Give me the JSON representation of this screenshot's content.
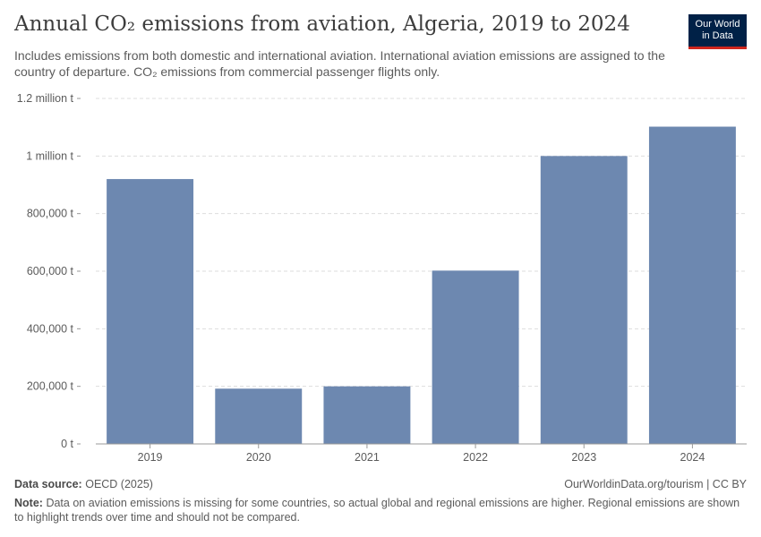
{
  "title": "Annual CO₂ emissions from aviation, Algeria, 2019 to 2024",
  "subtitle": "Includes emissions from both domestic and international aviation. International aviation emissions are assigned to the country of departure. CO₂ emissions from commercial passenger flights only.",
  "logo": {
    "line1": "Our World",
    "line2": "in Data"
  },
  "footer": {
    "source_label": "Data source:",
    "source_value": "OECD (2025)",
    "url": "OurWorldinData.org/tourism | CC BY",
    "note_label": "Note:",
    "note_text": "Data on aviation emissions is missing for some countries, so actual global and regional emissions are higher. Regional emissions are shown to highlight trends over time and should not be compared."
  },
  "colors": {
    "bar": "#6d88b0",
    "grid": "#dddddd",
    "axis": "#999999"
  },
  "chart_data": {
    "type": "bar",
    "title": "Annual CO₂ emissions from aviation, Algeria, 2019 to 2024",
    "xlabel": "",
    "ylabel": "",
    "categories": [
      "2019",
      "2020",
      "2021",
      "2022",
      "2023",
      "2024"
    ],
    "values": [
      920000,
      192000,
      200000,
      602000,
      1000000,
      1102000
    ],
    "ylim": [
      0,
      1200000
    ],
    "yticks": [
      {
        "value": 0,
        "label": "0 t"
      },
      {
        "value": 200000,
        "label": "200,000 t"
      },
      {
        "value": 400000,
        "label": "400,000 t"
      },
      {
        "value": 600000,
        "label": "600,000 t"
      },
      {
        "value": 800000,
        "label": "800,000 t"
      },
      {
        "value": 1000000,
        "label": "1 million t"
      },
      {
        "value": 1200000,
        "label": "1.2 million t"
      }
    ],
    "grid": true
  }
}
